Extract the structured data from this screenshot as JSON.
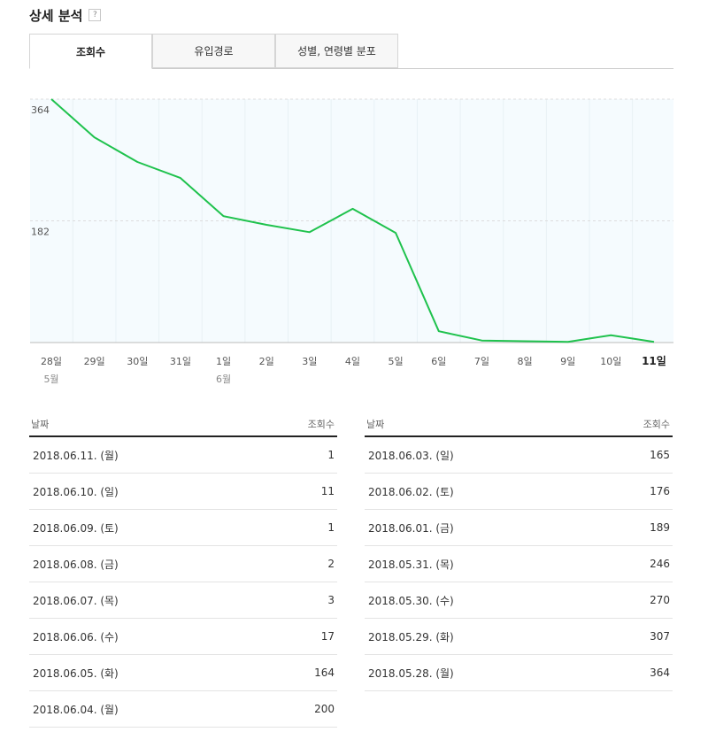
{
  "header": {
    "title": "상세 분석",
    "help": "?"
  },
  "tabs": [
    {
      "label": "조회수",
      "active": true
    },
    {
      "label": "유입경로",
      "active": false
    },
    {
      "label": "성별, 연령별 분포",
      "active": false
    }
  ],
  "colors": {
    "line": "#1fc24d",
    "plot_bg": "#f5fbfe",
    "grid": "#dddddd"
  },
  "chart_data": {
    "type": "line",
    "x": [
      "28일",
      "29일",
      "30일",
      "31일",
      "1일",
      "2일",
      "3일",
      "4일",
      "5일",
      "6일",
      "7일",
      "8일",
      "9일",
      "10일",
      "11일"
    ],
    "month_labels": [
      {
        "index": 0,
        "label": "5월"
      },
      {
        "index": 4,
        "label": "6월"
      }
    ],
    "highlight_index": 14,
    "series": [
      {
        "values": [
          364,
          307,
          270,
          246,
          189,
          176,
          165,
          200,
          164,
          17,
          3,
          2,
          1,
          11,
          1
        ]
      }
    ],
    "y_ticks": [
      182,
      364
    ],
    "ylim": [
      0,
      364
    ]
  },
  "table_left": {
    "headers": {
      "date": "날짜",
      "views": "조회수"
    },
    "rows": [
      {
        "date": "2018.06.11. (월)",
        "views": "1"
      },
      {
        "date": "2018.06.10. (일)",
        "views": "11"
      },
      {
        "date": "2018.06.09. (토)",
        "views": "1"
      },
      {
        "date": "2018.06.08. (금)",
        "views": "2"
      },
      {
        "date": "2018.06.07. (목)",
        "views": "3"
      },
      {
        "date": "2018.06.06. (수)",
        "views": "17"
      },
      {
        "date": "2018.06.05. (화)",
        "views": "164"
      },
      {
        "date": "2018.06.04. (월)",
        "views": "200"
      }
    ]
  },
  "table_right": {
    "headers": {
      "date": "날짜",
      "views": "조회수"
    },
    "rows": [
      {
        "date": "2018.06.03. (일)",
        "views": "165"
      },
      {
        "date": "2018.06.02. (토)",
        "views": "176"
      },
      {
        "date": "2018.06.01. (금)",
        "views": "189"
      },
      {
        "date": "2018.05.31. (목)",
        "views": "246"
      },
      {
        "date": "2018.05.30. (수)",
        "views": "270"
      },
      {
        "date": "2018.05.29. (화)",
        "views": "307"
      },
      {
        "date": "2018.05.28. (월)",
        "views": "364"
      }
    ]
  }
}
